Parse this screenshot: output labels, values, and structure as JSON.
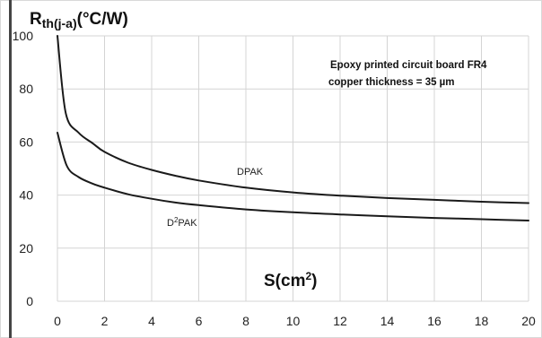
{
  "chart_data": {
    "type": "line",
    "ylabel_main": "R",
    "ylabel_sub": "th(j-a)",
    "ylabel_unit": "(°C/W)",
    "xlabel_main": "S(cm",
    "xlabel_sup": "2",
    "xlabel_close": ")",
    "annotation_lines": [
      "Epoxy printed circuit board FR4",
      "copper thickness = 35 µm"
    ],
    "xlim": [
      0,
      20
    ],
    "ylim": [
      0,
      100
    ],
    "xticks": [
      "0",
      "2",
      "4",
      "6",
      "8",
      "10",
      "12",
      "14",
      "16",
      "18",
      "20"
    ],
    "yticks": [
      "0",
      "20",
      "40",
      "60",
      "80",
      "100"
    ],
    "grid": true,
    "series": [
      {
        "name": "DPAK",
        "x": [
          0.0,
          0.35,
          0.9,
          1.5,
          2,
          3,
          4,
          5,
          6,
          8,
          10,
          12,
          14,
          16,
          18,
          20
        ],
        "y": [
          100,
          71,
          63.5,
          59.5,
          56.3,
          52.2,
          49.5,
          47.3,
          45.5,
          42.8,
          41,
          39.8,
          38.9,
          38.2,
          37.5,
          37
        ]
      },
      {
        "name_main": "D",
        "name_sup": "2",
        "name_rest": "PAK",
        "x": [
          0.0,
          0.4,
          0.9,
          1.5,
          2,
          3,
          4,
          5,
          6,
          8,
          10,
          12,
          14,
          16,
          18,
          20
        ],
        "y": [
          63.5,
          51,
          46.8,
          44.3,
          42.8,
          40.3,
          38.6,
          37.2,
          36.2,
          34.6,
          33.5,
          32.7,
          32,
          31.4,
          30.9,
          30.4
        ]
      }
    ]
  }
}
